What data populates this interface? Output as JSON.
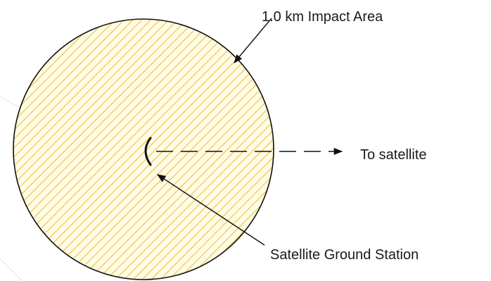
{
  "labels": {
    "impact_area": "1.0 km Impact Area",
    "direction": "To satellite",
    "station": "Satellite Ground Station"
  },
  "colors": {
    "fill": "#fffbe6",
    "hatch": "#e8c43c",
    "outline": "#111111",
    "arrow": "#111111",
    "faint_line": "#e4e4e4"
  },
  "icons": {
    "station": "dish-antenna-icon"
  }
}
